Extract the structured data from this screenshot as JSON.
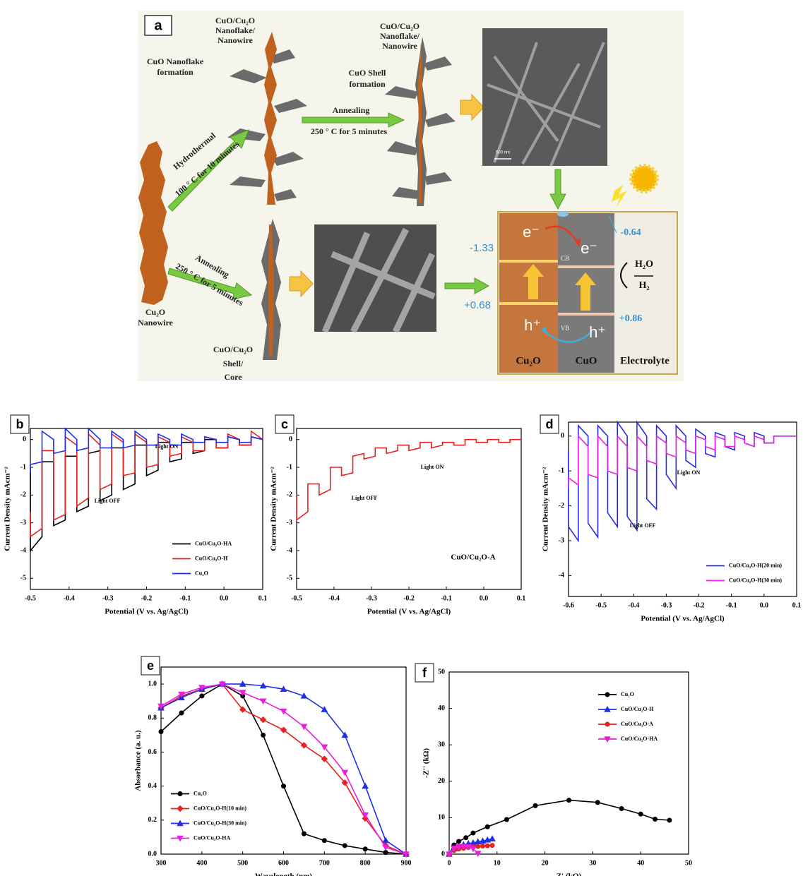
{
  "diagram": {
    "panel_label": "a",
    "nanoflake_top_left": [
      "CuO/Cu₂O",
      "Nanoflake/",
      "Nanowire"
    ],
    "nanoflake_top_right": [
      "CuO/Cu₂O",
      "Nanoflake/",
      "Nanowire"
    ],
    "nanoflake_formation": [
      "CuO Nanoflake",
      "formation"
    ],
    "shell_formation": [
      "CuO Shell",
      "formation"
    ],
    "anneal_top": [
      "Annealing",
      "250 ° C for 5 minutes"
    ],
    "hydrothermal": [
      "Hydrothermal",
      "100 ° C for 10 minutes"
    ],
    "anneal_bottom": [
      "Annealing",
      "250 ° C for 5 minutes"
    ],
    "nanowire": [
      "Cu₂O",
      "Nanowire"
    ],
    "shell_core": [
      "CuO/Cu₂O",
      "Shell/",
      "Core"
    ],
    "scale_bar": "500 nm",
    "band": {
      "cb_left": "-1.33",
      "vb_left": "+0.68",
      "cb_right": "-0.64",
      "vb_right": "+0.86",
      "electron": "e⁻",
      "hole": "h⁺",
      "cb": "CB",
      "vb": "VB",
      "redox_top": "H₂O",
      "redox_bottom": "H₂",
      "cu2o": "Cu₂O",
      "cuo": "CuO",
      "electrolyte": "Electrolyte"
    }
  },
  "chart_data": [
    {
      "type": "line",
      "panel_label": "b",
      "xlabel": "Potential (V vs. Ag/AgCl)",
      "ylabel": "Current Density mAcm⁻²",
      "xlim": [
        -0.5,
        0.1
      ],
      "ylim": [
        -5.4,
        0.4
      ],
      "xticks": [
        -0.5,
        -0.4,
        -0.3,
        -0.2,
        -0.1,
        {
          "value": 0,
          "label": "0.0"
        },
        0.1
      ],
      "yticks": [
        0,
        -1,
        -2,
        -3,
        -4,
        -5
      ],
      "legend": "lower right",
      "annotations": [
        "Light ON",
        "Light OFF"
      ],
      "x": [
        -0.5,
        -0.5,
        -0.47,
        -0.47,
        -0.44,
        -0.44,
        -0.41,
        -0.41,
        -0.38,
        -0.38,
        -0.35,
        -0.35,
        -0.32,
        -0.32,
        -0.29,
        -0.29,
        -0.26,
        -0.26,
        -0.23,
        -0.23,
        -0.2,
        -0.2,
        -0.17,
        -0.17,
        -0.14,
        -0.14,
        -0.11,
        -0.11,
        -0.08,
        -0.08,
        -0.05,
        -0.05,
        -0.02,
        -0.02,
        0.01,
        0.01,
        0.04,
        0.04,
        0.07,
        0.07,
        0.1
      ],
      "series": [
        {
          "name": "CuO/Cu₂O-HA",
          "color": "#000000",
          "values": [
            -1.0,
            -4.0,
            -3.5,
            -0.8,
            -0.8,
            -3.1,
            -2.9,
            -0.6,
            -0.6,
            -2.6,
            -2.4,
            -0.5,
            -0.4,
            -2.2,
            -2.0,
            -0.3,
            -0.3,
            -1.8,
            -1.6,
            -0.2,
            -0.2,
            -1.3,
            -1.1,
            -0.1,
            -0.1,
            -0.8,
            -0.7,
            -0.1,
            -0.1,
            -0.5,
            -0.4,
            0.0,
            0.0,
            -0.3,
            -0.3,
            0.1,
            0.0,
            -0.2,
            -0.2,
            0.1,
            0.0
          ]
        },
        {
          "name": "CuO/Cu₂O-H",
          "color": "#e8211f",
          "values": [
            -2.6,
            -3.5,
            -3.2,
            -0.4,
            -0.4,
            -2.9,
            -2.7,
            0.1,
            -0.2,
            -2.4,
            -2.1,
            0.2,
            -0.2,
            -1.8,
            -1.6,
            0.2,
            -0.1,
            -1.3,
            -1.2,
            0.2,
            -0.1,
            -1.0,
            -0.9,
            0.1,
            -0.1,
            -0.6,
            -0.5,
            0.1,
            -0.1,
            -0.4,
            -0.4,
            0.1,
            0.0,
            -0.3,
            -0.3,
            0.2,
            0.0,
            -0.2,
            -0.2,
            0.3,
            0.0
          ]
        },
        {
          "name": "Cu₂O",
          "color": "#1f2ee8",
          "values": [
            -1.2,
            -0.9,
            -0.8,
            0.3,
            0.0,
            -0.5,
            -0.4,
            0.4,
            0.0,
            -0.4,
            -0.3,
            0.4,
            0.0,
            -0.3,
            -0.3,
            0.3,
            0.0,
            -0.3,
            -0.2,
            0.3,
            0.0,
            -0.2,
            -0.2,
            0.2,
            0.0,
            -0.2,
            -0.2,
            0.2,
            0.0,
            -0.1,
            -0.1,
            0.1,
            0.0,
            -0.1,
            -0.1,
            0.1,
            0.0,
            -0.1,
            -0.1,
            0.1,
            0.0
          ]
        }
      ]
    },
    {
      "type": "line",
      "panel_label": "c",
      "xlabel": "Potential (V vs. Ag/AgCl)",
      "ylabel": "Current Density mAcm⁻²",
      "xlim": [
        -0.5,
        0.1
      ],
      "ylim": [
        -5.4,
        0.4
      ],
      "xticks": [
        -0.5,
        -0.4,
        -0.3,
        -0.2,
        -0.1,
        {
          "value": 0,
          "label": "0.0"
        },
        0.1
      ],
      "yticks": [
        0,
        -1,
        -2,
        -3,
        -4,
        -5
      ],
      "annotations": [
        "Light OFF",
        "Light ON",
        "CuO/Cu₂O-A"
      ],
      "x": [
        -0.5,
        -0.5,
        -0.47,
        -0.47,
        -0.44,
        -0.44,
        -0.41,
        -0.41,
        -0.38,
        -0.38,
        -0.35,
        -0.35,
        -0.32,
        -0.32,
        -0.29,
        -0.29,
        -0.26,
        -0.26,
        -0.23,
        -0.23,
        -0.2,
        -0.2,
        -0.17,
        -0.17,
        -0.14,
        -0.14,
        -0.11,
        -0.11,
        -0.08,
        -0.08,
        -0.05,
        -0.05,
        -0.02,
        -0.02,
        0.01,
        0.01,
        0.04,
        0.04,
        0.07,
        0.07,
        0.1
      ],
      "series": [
        {
          "color": "#e8211f",
          "values": [
            -2.0,
            -2.9,
            -2.6,
            -1.6,
            -1.6,
            -2.0,
            -1.8,
            -1.0,
            -1.0,
            -1.3,
            -1.2,
            -0.6,
            -0.5,
            -0.7,
            -0.6,
            -0.3,
            -0.3,
            -0.5,
            -0.4,
            -0.2,
            -0.2,
            -0.4,
            -0.3,
            -0.1,
            -0.1,
            -0.3,
            -0.2,
            -0.1,
            -0.1,
            -0.2,
            -0.2,
            0.0,
            0.0,
            -0.1,
            -0.1,
            0.0,
            0.0,
            -0.1,
            -0.1,
            0.0,
            0.0
          ]
        }
      ]
    },
    {
      "type": "line",
      "panel_label": "d",
      "xlabel": "Potential (V vs. Ag/AgCl)",
      "ylabel": "Current Density mAcm⁻²",
      "xlim": [
        -0.6,
        0.1
      ],
      "ylim": [
        -4.6,
        0.4
      ],
      "xticks": [
        -0.6,
        -0.5,
        -0.4,
        -0.3,
        -0.2,
        -0.1,
        {
          "value": 0,
          "label": "0.0"
        },
        0.1
      ],
      "yticks": [
        0,
        -1,
        -2,
        -3,
        -4
      ],
      "legend": "lower right",
      "annotations": [
        "Light OFF",
        "Light ON"
      ],
      "x": [
        -0.6,
        -0.6,
        -0.57,
        -0.57,
        -0.54,
        -0.54,
        -0.51,
        -0.51,
        -0.48,
        -0.48,
        -0.45,
        -0.45,
        -0.42,
        -0.42,
        -0.39,
        -0.39,
        -0.36,
        -0.36,
        -0.33,
        -0.33,
        -0.3,
        -0.3,
        -0.27,
        -0.27,
        -0.24,
        -0.24,
        -0.21,
        -0.21,
        -0.18,
        -0.18,
        -0.15,
        -0.15,
        -0.12,
        -0.12,
        -0.09,
        -0.09,
        -0.06,
        -0.06,
        -0.03,
        -0.03,
        0,
        0,
        0.03,
        0.03,
        0.1
      ],
      "series": [
        {
          "name": "CuO/Cu₂O-H(20 min)",
          "color": "#2a2ae6",
          "values": [
            -0.4,
            -2.6,
            -3.0,
            0.3,
            0.0,
            -2.5,
            -2.9,
            0.3,
            0.0,
            -2.2,
            -2.6,
            0.4,
            0.0,
            -2.3,
            -2.7,
            0.4,
            0.0,
            -1.8,
            -2.1,
            0.3,
            0.0,
            -1.1,
            -1.5,
            0.3,
            0.0,
            -0.7,
            -0.9,
            0.2,
            0.0,
            -0.5,
            -0.6,
            0.1,
            0.0,
            -0.3,
            -0.4,
            0.1,
            0.0,
            -0.2,
            -0.3,
            0.1,
            0.0,
            -0.2,
            -0.2,
            0.0,
            0.0
          ]
        },
        {
          "name": "CuO/Cu₂O-H(30 min)",
          "color": "#e81fe0",
          "values": [
            -1.5,
            -1.2,
            -1.4,
            0.0,
            -0.3,
            -1.1,
            -1.2,
            0.0,
            -0.3,
            -1.0,
            -1.1,
            0.0,
            -0.3,
            -0.9,
            -1.0,
            0.0,
            -0.3,
            -0.7,
            -0.8,
            0.0,
            -0.2,
            -0.5,
            -0.6,
            0.0,
            -0.2,
            -0.4,
            -0.5,
            0.0,
            -0.1,
            -0.3,
            -0.4,
            0.0,
            -0.1,
            -0.3,
            -0.3,
            0.0,
            -0.1,
            -0.2,
            -0.3,
            0.0,
            -0.1,
            -0.2,
            -0.2,
            0.0,
            0.0
          ]
        }
      ]
    },
    {
      "type": "line",
      "panel_label": "e",
      "xlabel": "Wavelength (nm)",
      "ylabel": "Absorbance (a. u.)",
      "xlim": [
        300,
        900
      ],
      "ylim": [
        0,
        1.1
      ],
      "xticks": [
        300,
        400,
        500,
        600,
        700,
        800,
        900
      ],
      "yticks": [
        {
          "value": 0,
          "label": "0.0"
        },
        0.2,
        0.4,
        0.6,
        0.8,
        {
          "value": 1,
          "label": "1.0"
        }
      ],
      "legend": "lower left",
      "x": [
        300,
        350,
        400,
        450,
        500,
        550,
        600,
        650,
        700,
        750,
        800,
        850,
        900
      ],
      "series": [
        {
          "name": "Cu₂O",
          "color": "#000000",
          "marker": "circle",
          "values": [
            0.72,
            0.83,
            0.93,
            1.0,
            0.93,
            0.7,
            0.4,
            0.12,
            0.08,
            0.05,
            0.03,
            0.01,
            0.0
          ]
        },
        {
          "name": "CuO/Cu₂O-H(10 min)",
          "color": "#e8211f",
          "marker": "diamond",
          "values": [
            0.86,
            0.93,
            0.97,
            1.0,
            0.85,
            0.79,
            0.73,
            0.64,
            0.56,
            0.42,
            0.21,
            0.05,
            0.0
          ]
        },
        {
          "name": "CuO/Cu₂O-H(30 min)",
          "color": "#1f2ee8",
          "marker": "triangle-up",
          "values": [
            0.86,
            0.92,
            0.97,
            1.0,
            1.0,
            0.99,
            0.97,
            0.93,
            0.85,
            0.7,
            0.4,
            0.08,
            0.0
          ]
        },
        {
          "name": "CuO/Cu₂O-HA",
          "color": "#e81fe0",
          "marker": "triangle-down",
          "values": [
            0.87,
            0.94,
            0.98,
            1.0,
            0.95,
            0.9,
            0.84,
            0.75,
            0.63,
            0.48,
            0.23,
            0.04,
            0.0
          ]
        }
      ]
    },
    {
      "type": "line",
      "panel_label": "f",
      "xlabel": "Z' (kΩ)",
      "ylabel": "-Z'' (kΩ)",
      "xlim": [
        0,
        50
      ],
      "ylim": [
        0,
        50
      ],
      "xticks": [
        0,
        10,
        20,
        30,
        40,
        50
      ],
      "yticks": [
        0,
        10,
        20,
        30,
        40,
        50
      ],
      "legend": "upper right",
      "series": [
        {
          "name": "Cu₂O",
          "color": "#000000",
          "marker": "circle",
          "x": [
            0,
            1,
            2,
            3.5,
            5,
            8,
            12,
            18,
            25,
            31,
            36,
            40,
            43,
            46
          ],
          "values": [
            0,
            2.5,
            3.5,
            4.5,
            5.8,
            7.5,
            9.5,
            13.3,
            14.8,
            14.2,
            12.5,
            11,
            9.6,
            9.3
          ]
        },
        {
          "name": "CuO/Cu₂O-H",
          "color": "#1f2ee8",
          "marker": "triangle-up",
          "x": [
            0,
            1,
            2,
            3,
            4,
            5,
            6,
            7,
            8,
            9
          ],
          "values": [
            0,
            1.5,
            2.2,
            2.6,
            2.9,
            3.1,
            3.4,
            3.6,
            3.9,
            4.2
          ]
        },
        {
          "name": "CuO/Cu₂O-A",
          "color": "#e8211f",
          "marker": "circle",
          "x": [
            0,
            1,
            2,
            3,
            4,
            5,
            6,
            7,
            8,
            9
          ],
          "values": [
            0,
            1.0,
            1.4,
            1.6,
            1.8,
            2.0,
            2.1,
            2.2,
            2.3,
            2.4
          ]
        },
        {
          "name": "CuO/Cu₂O-HA",
          "color": "#e81fe0",
          "marker": "triangle-down",
          "x": [
            0,
            1,
            2,
            3,
            4,
            5,
            6
          ],
          "values": [
            0,
            1.6,
            2.0,
            2.1,
            2.0,
            1.5,
            0.2
          ]
        }
      ]
    }
  ]
}
